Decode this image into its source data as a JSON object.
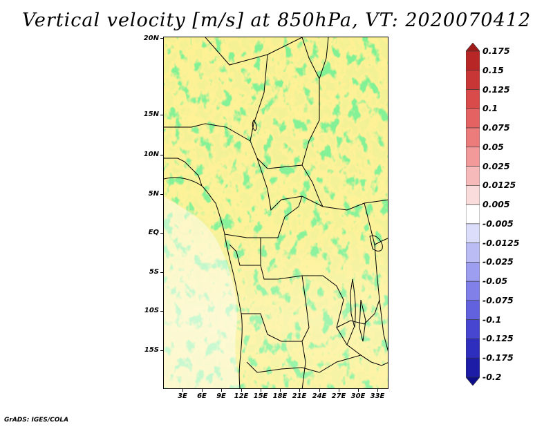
{
  "title": "Vertical velocity [m/s] at 850hPa, VT: 2020070412",
  "credit": "GrADS: IGES/COLA",
  "lat_labels": [
    "20N",
    "15N",
    "10N",
    "5N",
    "EQ",
    "5S",
    "10S",
    "15S"
  ],
  "lon_labels": [
    "3E",
    "6E",
    "9E",
    "12E",
    "15E",
    "18E",
    "21E",
    "24E",
    "27E",
    "30E",
    "33E"
  ],
  "colorbar": {
    "labels": [
      "0.175",
      "0.15",
      "0.125",
      "0.1",
      "0.075",
      "0.05",
      "0.025",
      "0.0125",
      "0.005",
      "-0.005",
      "-0.0125",
      "-0.025",
      "-0.05",
      "-0.075",
      "-0.1",
      "-0.125",
      "-0.175",
      "-0.2"
    ],
    "colors": [
      "#a01a1a",
      "#b82626",
      "#c93636",
      "#d94a4a",
      "#e46262",
      "#ec7c7c",
      "#f29a9a",
      "#f7baba",
      "#fbdcdc",
      "#ffffff",
      "#dcdcfb",
      "#bcbcf5",
      "#9e9ef0",
      "#8080e8",
      "#6262de",
      "#4646d0",
      "#2e2ebe",
      "#1c1ca6",
      "#0e0e8a"
    ]
  }
}
